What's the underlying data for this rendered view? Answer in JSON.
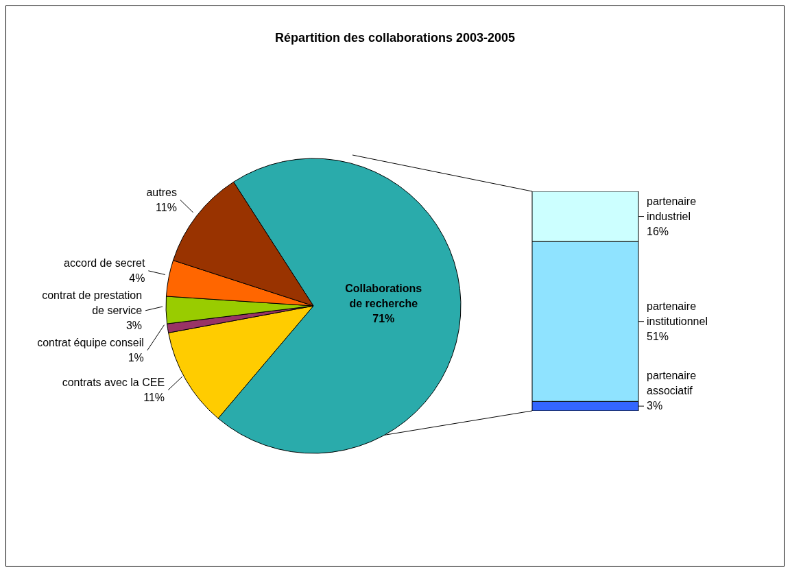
{
  "chart_data": [
    {
      "type": "pie",
      "title": "Répartition des collaborations 2003-2005",
      "categories": [
        "Collaborations de recherche",
        "contrats avec la CEE",
        "contrat équipe conseil",
        "contrat de prestation de service",
        "accord de secret",
        "autres"
      ],
      "values": [
        71,
        11,
        1,
        3,
        4,
        11
      ],
      "colors": [
        "#2aabab",
        "#ffcc00",
        "#993366",
        "#99cc00",
        "#ff6600",
        "#993300"
      ],
      "value_labels": [
        "71%",
        "11%",
        "1%",
        "3%",
        "4%",
        "11%"
      ]
    },
    {
      "type": "bar",
      "stacked": true,
      "categories": [
        null
      ],
      "series": [
        {
          "name": "partenaire associatif",
          "color": "#3366ff",
          "values": [
            3
          ],
          "value_labels": [
            "3%"
          ]
        },
        {
          "name": "partenaire institutionnel",
          "color": "#8fe3ff",
          "values": [
            51
          ],
          "value_labels": [
            "51%"
          ]
        },
        {
          "name": "partenaire industriel",
          "color": "#ccffff",
          "values": [
            16
          ],
          "value_labels": [
            "16%"
          ]
        }
      ]
    }
  ]
}
